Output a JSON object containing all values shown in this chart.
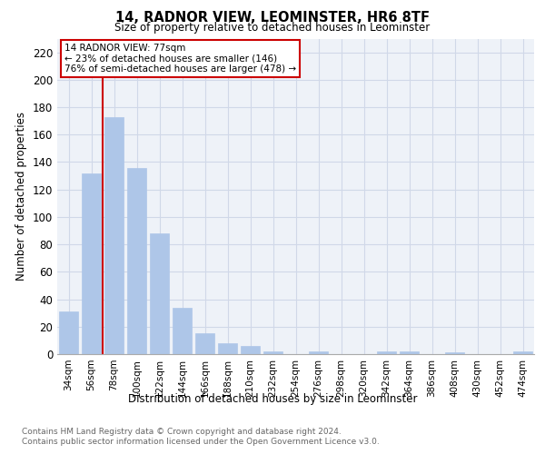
{
  "title1": "14, RADNOR VIEW, LEOMINSTER, HR6 8TF",
  "title2": "Size of property relative to detached houses in Leominster",
  "xlabel": "Distribution of detached houses by size in Leominster",
  "ylabel": "Number of detached properties",
  "categories": [
    "34sqm",
    "56sqm",
    "78sqm",
    "100sqm",
    "122sqm",
    "144sqm",
    "166sqm",
    "188sqm",
    "210sqm",
    "232sqm",
    "254sqm",
    "276sqm",
    "298sqm",
    "320sqm",
    "342sqm",
    "364sqm",
    "386sqm",
    "408sqm",
    "430sqm",
    "452sqm",
    "474sqm"
  ],
  "values": [
    31,
    132,
    173,
    136,
    88,
    34,
    15,
    8,
    6,
    2,
    0,
    2,
    0,
    0,
    2,
    2,
    0,
    1,
    0,
    0,
    2
  ],
  "bar_color": "#aec6e8",
  "bar_edgecolor": "#aec6e8",
  "annotation_text": "14 RADNOR VIEW: 77sqm\n← 23% of detached houses are smaller (146)\n76% of semi-detached houses are larger (478) →",
  "annotation_box_color": "white",
  "annotation_box_edgecolor": "#cc0000",
  "vline_color": "#cc0000",
  "grid_color": "#d0d8e8",
  "background_color": "#eef2f8",
  "footer1": "Contains HM Land Registry data © Crown copyright and database right 2024.",
  "footer2": "Contains public sector information licensed under the Open Government Licence v3.0.",
  "ylim": [
    0,
    230
  ],
  "yticks": [
    0,
    20,
    40,
    60,
    80,
    100,
    120,
    140,
    160,
    180,
    200,
    220
  ]
}
